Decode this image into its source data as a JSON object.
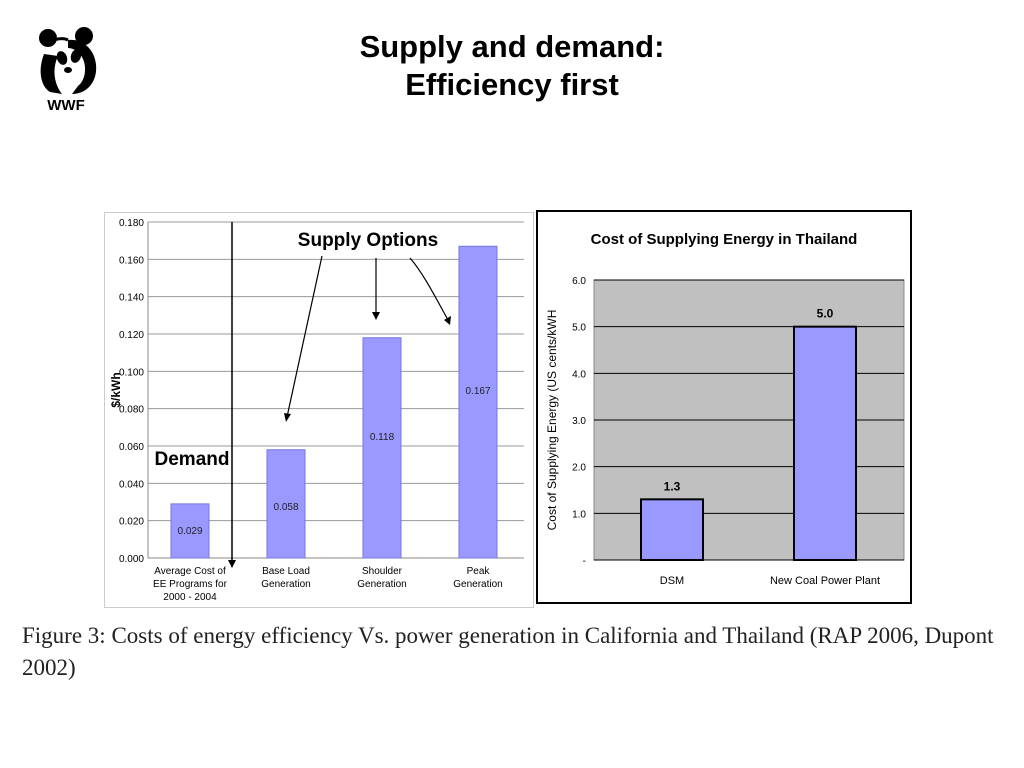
{
  "header": {
    "title_line1": "Supply and demand:",
    "title_line2": "Efficiency first",
    "logo_text": "WWF"
  },
  "chart_data": [
    {
      "type": "bar",
      "categories": [
        [
          "Average Cost of",
          "EE Programs for",
          "2000 - 2004"
        ],
        [
          "Base Load",
          "Generation"
        ],
        [
          "Shoulder",
          "Generation"
        ],
        [
          "Peak",
          "Generation"
        ]
      ],
      "values": [
        0.029,
        0.058,
        0.118,
        0.167
      ],
      "data_labels": [
        "0.029",
        "0.058",
        "0.118",
        "0.167"
      ],
      "ylabel": "$/kWh",
      "ylim": [
        0,
        0.18
      ],
      "yticks": [
        "0.000",
        "0.020",
        "0.040",
        "0.060",
        "0.080",
        "0.100",
        "0.120",
        "0.140",
        "0.160",
        "0.180"
      ],
      "annotations": [
        "Supply Options",
        "Demand"
      ],
      "bar_color": "#9999ff",
      "grid": true
    },
    {
      "type": "bar",
      "title": "Cost of Supplying Energy in Thailand",
      "categories": [
        "DSM",
        "New Coal Power Plant"
      ],
      "values": [
        1.3,
        5.0
      ],
      "data_labels": [
        "1.3",
        "5.0"
      ],
      "ylabel": "Cost of Supplying Energy (US cents/kWH",
      "ylim": [
        0,
        6
      ],
      "yticks": [
        "-",
        "1.0",
        "2.0",
        "3.0",
        "4.0",
        "5.0",
        "6.0"
      ],
      "bar_color": "#9999ff",
      "plot_background": "#c0c0c0",
      "grid": true
    }
  ],
  "caption": "Figure 3:  Costs of energy efficiency Vs. power generation in California and Thailand (RAP 2006, Dupont 2002)"
}
